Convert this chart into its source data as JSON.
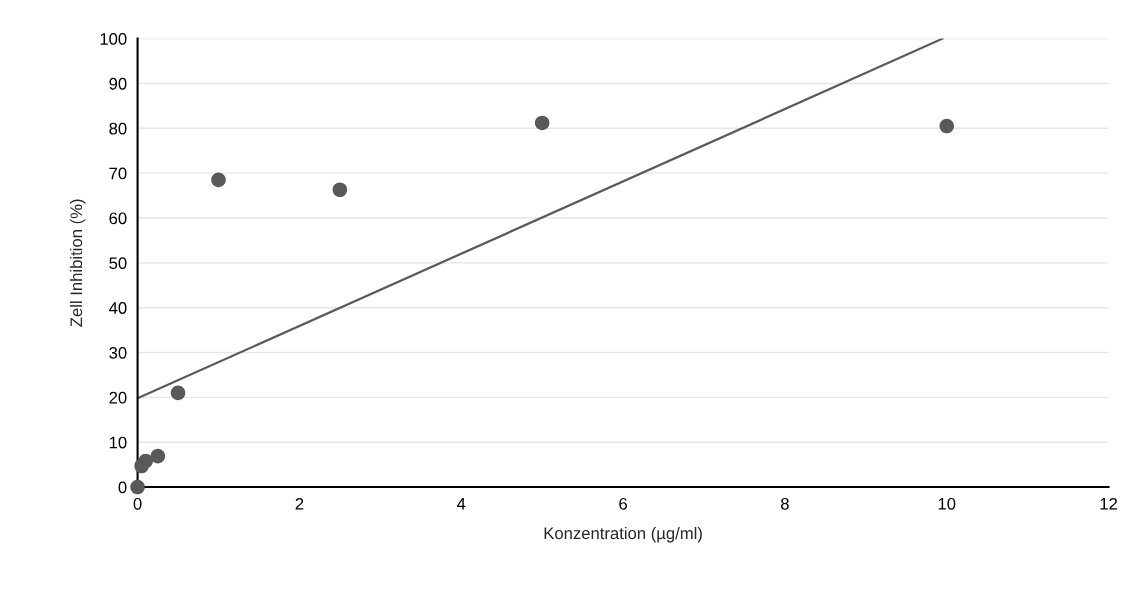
{
  "chart_data": {
    "type": "scatter",
    "xlabel": "Konzentration (µg/ml)",
    "ylabel": "Zell Inhibition (%)",
    "xlim": [
      0,
      12
    ],
    "xticks": [
      0,
      2,
      4,
      6,
      8,
      10,
      12
    ],
    "ylim": [
      0,
      100
    ],
    "yticks": [
      0,
      10,
      20,
      30,
      40,
      50,
      60,
      70,
      80,
      90,
      100
    ],
    "grid": "y",
    "series": [
      {
        "marker": "circle",
        "color": "#595959",
        "x": [
          0,
          0.05,
          0.1,
          0.25,
          0.5,
          1,
          2.5,
          5,
          10
        ],
        "values": [
          0,
          4.7,
          5.8,
          6.9,
          21,
          68.5,
          66.3,
          81.2,
          80.5
        ]
      },
      {
        "type": "line",
        "marker": "none",
        "color": "#595959",
        "x": [
          0,
          9.95
        ],
        "values": [
          19.8,
          100
        ]
      }
    ]
  }
}
